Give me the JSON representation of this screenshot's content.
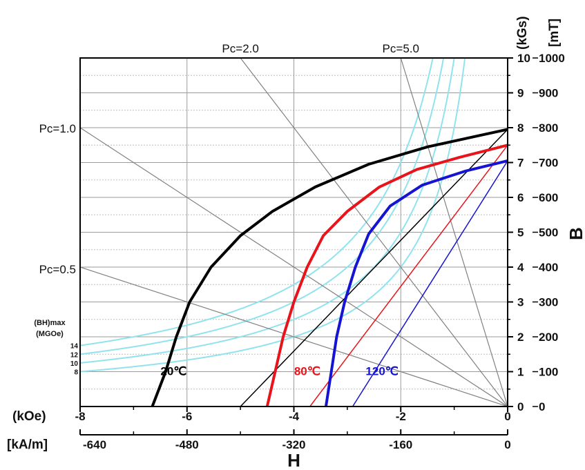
{
  "chart_data": {
    "type": "line",
    "title": "",
    "x_axis": {
      "name": "H",
      "unit_koe": "(kOe)",
      "unit_kam": "[kA/m]",
      "range_koe": [
        -8,
        0
      ],
      "ticks_koe": [
        "-8",
        "-6",
        "-4",
        "-2",
        "0"
      ],
      "ticks_kam": [
        "-640",
        "-480",
        "-320",
        "-160",
        "0"
      ]
    },
    "y_axis": {
      "name": "B",
      "unit_kgs": "(kGs)",
      "unit_mt": "[mT]",
      "range_kgs": [
        0,
        10
      ],
      "ticks_kgs": [
        "0",
        "1",
        "2",
        "3",
        "4",
        "5",
        "6",
        "7",
        "8",
        "9",
        "10"
      ],
      "ticks_mt": [
        "0",
        "100",
        "200",
        "300",
        "400",
        "500",
        "600",
        "700",
        "800",
        "900",
        "1000"
      ]
    },
    "grid": true,
    "permeance_lines": [
      {
        "label": "Pc=1.0",
        "pc": 1.0
      },
      {
        "label": "Pc=0.5",
        "pc": 0.5
      },
      {
        "label": "Pc=2.0",
        "pc": 2.0
      },
      {
        "label": "Pc=5.0",
        "pc": 5.0
      }
    ],
    "bh_max": {
      "label_line1": "(BH)max",
      "label_line2": "(MGOe)",
      "levels": [
        {
          "label": "8",
          "value": 8
        },
        {
          "label": "10",
          "value": 10
        },
        {
          "label": "12",
          "value": 12
        },
        {
          "label": "14",
          "value": 14
        }
      ],
      "color": "#8fe3ee"
    },
    "series": [
      {
        "name": "20℃",
        "color": "#000000",
        "demag": [
          [
            -6.65,
            0
          ],
          [
            -6.4,
            1.0
          ],
          [
            -6.2,
            2.0
          ],
          [
            -5.95,
            3.0
          ],
          [
            -5.55,
            4.0
          ],
          [
            -5.0,
            4.9
          ],
          [
            -4.4,
            5.6
          ],
          [
            -3.6,
            6.3
          ],
          [
            -2.6,
            6.95
          ],
          [
            -1.5,
            7.45
          ],
          [
            -0.6,
            7.75
          ],
          [
            0,
            7.95
          ]
        ],
        "recoil": [
          [
            -5.0,
            0
          ],
          [
            0,
            7.95
          ]
        ]
      },
      {
        "name": "80℃",
        "color": "#e8141c",
        "demag": [
          [
            -4.5,
            0
          ],
          [
            -4.35,
            1.0
          ],
          [
            -4.2,
            2.0
          ],
          [
            -4.0,
            3.0
          ],
          [
            -3.75,
            4.0
          ],
          [
            -3.45,
            4.9
          ],
          [
            -3.0,
            5.6
          ],
          [
            -2.4,
            6.3
          ],
          [
            -1.7,
            6.8
          ],
          [
            -0.9,
            7.15
          ],
          [
            0,
            7.5
          ]
        ],
        "recoil": [
          [
            -3.7,
            0
          ],
          [
            0,
            7.5
          ]
        ]
      },
      {
        "name": "120℃",
        "color": "#1414d2",
        "demag": [
          [
            -3.4,
            0
          ],
          [
            -3.3,
            1.0
          ],
          [
            -3.2,
            2.0
          ],
          [
            -3.05,
            3.0
          ],
          [
            -2.85,
            4.0
          ],
          [
            -2.6,
            4.95
          ],
          [
            -2.2,
            5.75
          ],
          [
            -1.6,
            6.35
          ],
          [
            -0.8,
            6.75
          ],
          [
            0,
            7.05
          ]
        ],
        "recoil": [
          [
            -2.9,
            0
          ],
          [
            0,
            7.05
          ]
        ]
      }
    ]
  }
}
